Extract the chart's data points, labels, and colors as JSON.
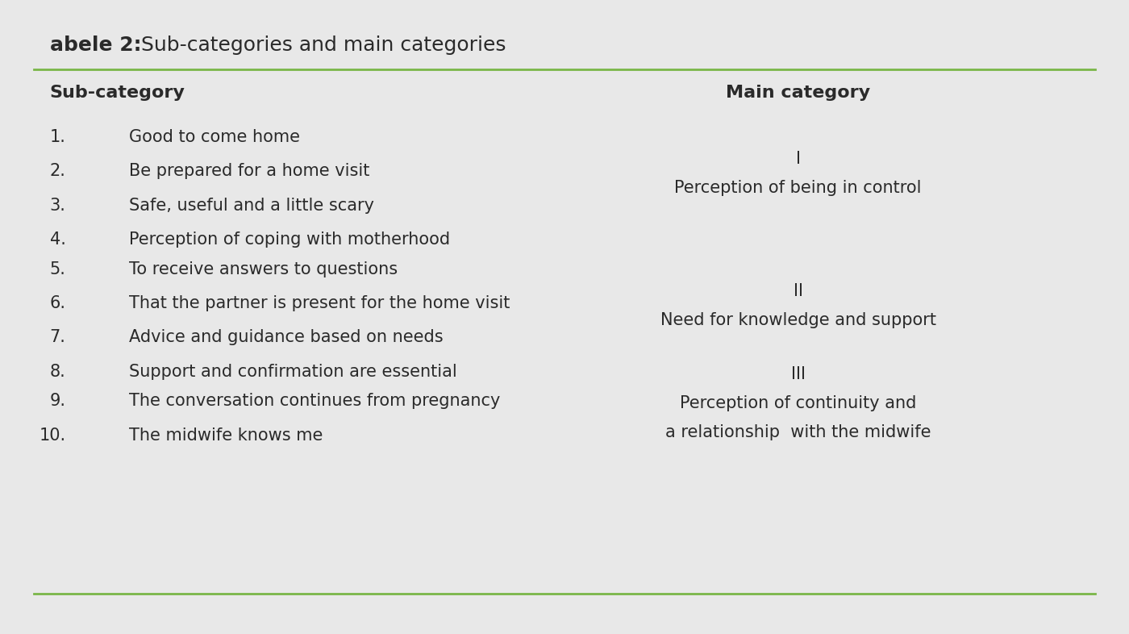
{
  "title_bold": "abele 2:",
  "title_normal": " Sub-categories and main categories",
  "col1_header": "Sub-category",
  "col2_header": "Main category",
  "background_color": "#ffffff",
  "outer_bg_color": "#e8e8e8",
  "header_line_color": "#7ab648",
  "border_color": "#7ab648",
  "text_color": "#2a2a2a",
  "groups": [
    {
      "items": [
        {
          "num": "1.",
          "text": "Good to come home"
        },
        {
          "num": "2.",
          "text": "Be prepared for a home visit"
        },
        {
          "num": "3.",
          "text": "Safe, useful and a little scary"
        },
        {
          "num": "4.",
          "text": "Perception of coping with motherhood"
        }
      ],
      "main_roman": "I",
      "main_lines": [
        "Perception of being in control"
      ]
    },
    {
      "items": [
        {
          "num": "5.",
          "text": "To receive answers to questions"
        },
        {
          "num": "6.",
          "text": "That the partner is present for the home visit"
        },
        {
          "num": "7.",
          "text": "Advice and guidance based on needs"
        },
        {
          "num": "8.",
          "text": "Support and confirmation are essential"
        }
      ],
      "main_roman": "II",
      "main_lines": [
        "Need for knowledge and support"
      ]
    },
    {
      "items": [
        {
          "num": "9.",
          "text": "The conversation continues from pregnancy"
        },
        {
          "num": "10.",
          "text": "The midwife knows me"
        }
      ],
      "main_roman": "III",
      "main_lines": [
        "Perception of continuity and",
        "a relationship  with the midwife"
      ]
    }
  ],
  "title_fontsize": 18,
  "header_fontsize": 16,
  "body_fontsize": 15,
  "roman_fontsize": 15
}
